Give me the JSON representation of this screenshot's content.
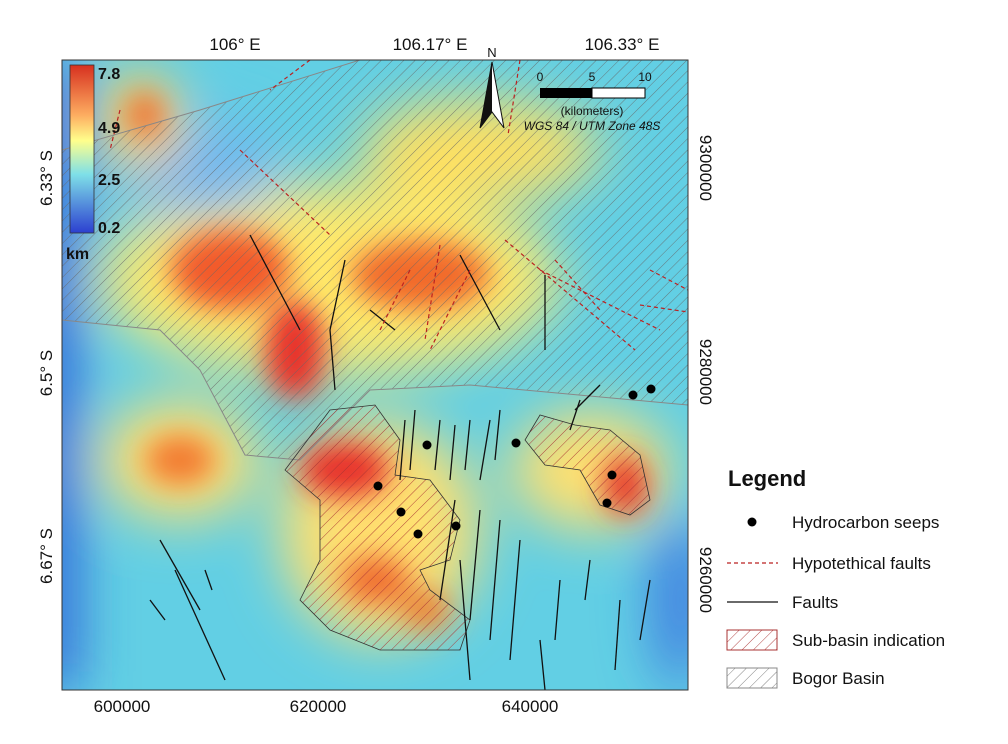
{
  "map": {
    "top_ticks": [
      "106° E",
      "106.17° E",
      "106.33° E"
    ],
    "left_ticks": [
      "6.33° S",
      "6.5° S",
      "6.67° S"
    ],
    "bottom_ticks": [
      "600000",
      "620000",
      "640000"
    ],
    "right_ticks": [
      "9300000",
      "9280000",
      "9260000"
    ],
    "colorbar": {
      "labels": [
        "7.8",
        "4.9",
        "2.5",
        "0.2"
      ],
      "unit": "km"
    },
    "north": "N",
    "scale_bar": {
      "labels": [
        "0",
        "5",
        "10"
      ],
      "unit": "(kilometers)",
      "projection": "WGS 84 / UTM Zone 48S"
    }
  },
  "legend": {
    "title": "Legend",
    "items": [
      "Hydrocarbon seeps",
      "Hypotethical faults",
      "Faults",
      "Sub-basin indication",
      "Bogor Basin"
    ]
  }
}
